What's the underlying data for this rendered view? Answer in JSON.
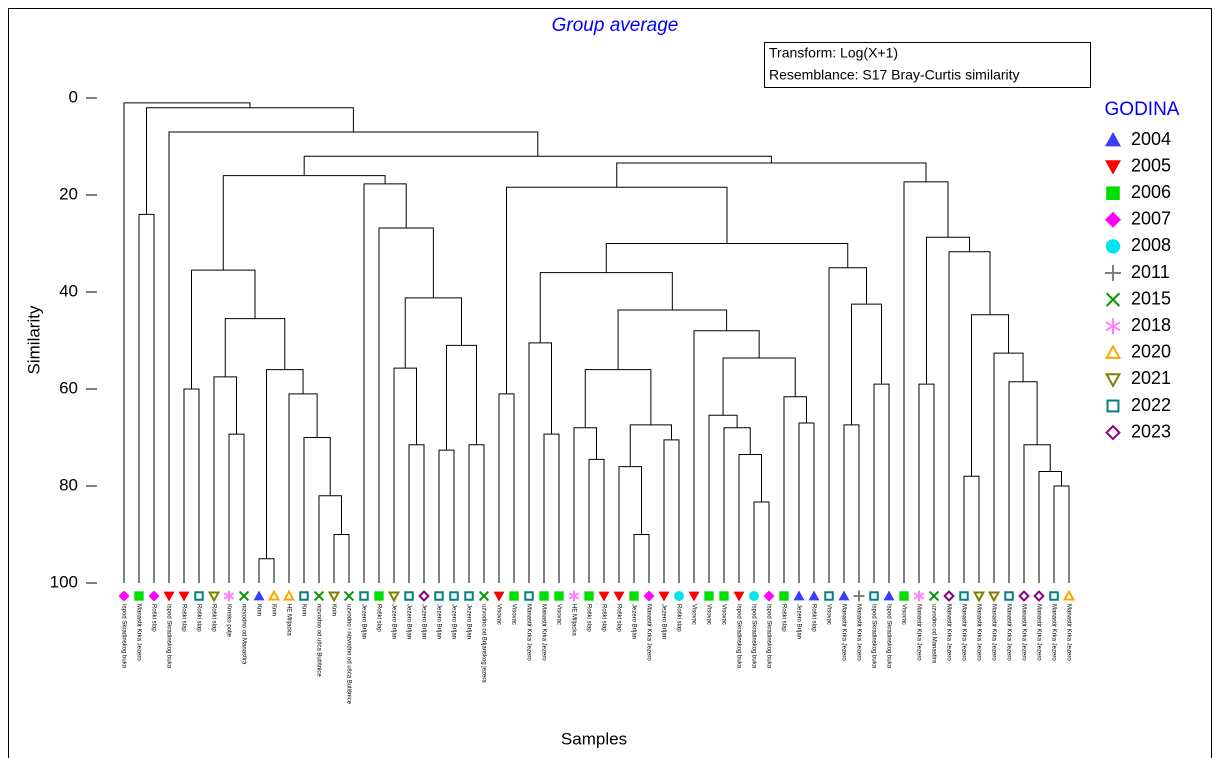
{
  "chart_data": {
    "type": "dendrogram",
    "title": "Group average",
    "notes": [
      "Transform: Log(X+1)",
      "Resemblance: S17 Bray-Curtis similarity"
    ],
    "y_label": "Similarity",
    "x_label": "Samples",
    "ylim": [
      0,
      100
    ],
    "yticks": [
      0,
      20,
      40,
      60,
      80,
      100
    ],
    "legend_title": "GODINA",
    "groups": [
      {
        "name": "2004",
        "color": "#3b3bff",
        "shape": "triangle-up"
      },
      {
        "name": "2005",
        "color": "#ff0000",
        "shape": "triangle-down"
      },
      {
        "name": "2006",
        "color": "#00e000",
        "shape": "square"
      },
      {
        "name": "2007",
        "color": "#ff00ff",
        "shape": "diamond"
      },
      {
        "name": "2008",
        "color": "#00e5ee",
        "shape": "circle"
      },
      {
        "name": "2011",
        "color": "#808080",
        "shape": "plus"
      },
      {
        "name": "2015",
        "color": "#009a00",
        "shape": "cross"
      },
      {
        "name": "2018",
        "color": "#ff80ff",
        "shape": "asterisk"
      },
      {
        "name": "2020",
        "color": "#ffa500",
        "shape": "triangle-up-open"
      },
      {
        "name": "2021",
        "color": "#7f7f00",
        "shape": "triangle-down-open"
      },
      {
        "name": "2022",
        "color": "#008080",
        "shape": "square-open"
      },
      {
        "name": "2023",
        "color": "#8b008b",
        "shape": "diamond-open"
      }
    ],
    "leaves": [
      {
        "label": "Ispod Skradinskog buka",
        "group": "2007"
      },
      {
        "label": "Manastir Krka Jezero",
        "group": "2006"
      },
      {
        "label": "Roški slap",
        "group": "2007"
      },
      {
        "label": "Ispod Skradinskog buka",
        "group": "2005"
      },
      {
        "label": "Roški slap",
        "group": "2005"
      },
      {
        "label": "Roški slap",
        "group": "2022"
      },
      {
        "label": "Roški slap",
        "group": "2021"
      },
      {
        "label": "Krnsko polje",
        "group": "2018"
      },
      {
        "label": "nizvodno od Manastira",
        "group": "2015"
      },
      {
        "label": "Knin",
        "group": "2004"
      },
      {
        "label": "Knin",
        "group": "2020"
      },
      {
        "label": "HE Miljacka",
        "group": "2020"
      },
      {
        "label": "Knin",
        "group": "2022"
      },
      {
        "label": "nizvodno od ušća Butišnice",
        "group": "2015"
      },
      {
        "label": "Knin",
        "group": "2021"
      },
      {
        "label": "uzvodno i nizvodno od ušća Butišnice",
        "group": "2015"
      },
      {
        "label": "Jezero Brljan",
        "group": "2022"
      },
      {
        "label": "Roški slap",
        "group": "2006"
      },
      {
        "label": "Jezero Brljan",
        "group": "2021"
      },
      {
        "label": "Jezero Brljan",
        "group": "2022"
      },
      {
        "label": "Jezero Brljan",
        "group": "2023"
      },
      {
        "label": "Jezero Brljan",
        "group": "2022"
      },
      {
        "label": "Jezero Brljan",
        "group": "2022"
      },
      {
        "label": "Jezero Brljan",
        "group": "2022"
      },
      {
        "label": "uzvodno od Brljanskog jezera",
        "group": "2015"
      },
      {
        "label": "Visovac",
        "group": "2005"
      },
      {
        "label": "Visovac",
        "group": "2006"
      },
      {
        "label": "Manastir Krka Jezero",
        "group": "2022"
      },
      {
        "label": "Manastir Krka Jezero",
        "group": "2006"
      },
      {
        "label": "Visovac",
        "group": "2006"
      },
      {
        "label": "HE Miljacka",
        "group": "2018"
      },
      {
        "label": "Roški slap",
        "group": "2006"
      },
      {
        "label": "Roški slap",
        "group": "2005"
      },
      {
        "label": "Roški slap",
        "group": "2005"
      },
      {
        "label": "Jezero Brljan",
        "group": "2006"
      },
      {
        "label": "Manastir Krka Jezero",
        "group": "2007"
      },
      {
        "label": "Jezero Brljan",
        "group": "2005"
      },
      {
        "label": "Roški slap",
        "group": "2008"
      },
      {
        "label": "Visovac",
        "group": "2005"
      },
      {
        "label": "Visovac",
        "group": "2006"
      },
      {
        "label": "Visovac",
        "group": "2006"
      },
      {
        "label": "Ispod Skradinskog buka",
        "group": "2005"
      },
      {
        "label": "Ispod Skradinskog buka",
        "group": "2008"
      },
      {
        "label": "Ispod Skradinskog buka",
        "group": "2007"
      },
      {
        "label": "Roški slap",
        "group": "2006"
      },
      {
        "label": "Jezero Brljan",
        "group": "2004"
      },
      {
        "label": "Roški slap",
        "group": "2004"
      },
      {
        "label": "Visovac",
        "group": "2022"
      },
      {
        "label": "Manastir Krka Jezero",
        "group": "2004"
      },
      {
        "label": "Manastir Krka Jezero",
        "group": "2011"
      },
      {
        "label": "Ispod Skradinskog buka",
        "group": "2022"
      },
      {
        "label": "Ispod Skradinskog buka",
        "group": "2004"
      },
      {
        "label": "Visovac",
        "group": "2006"
      },
      {
        "label": "Manastir Krka Jezero",
        "group": "2018"
      },
      {
        "label": "uzvodno od Manastira",
        "group": "2015"
      },
      {
        "label": "Manastir Krka Jezero",
        "group": "2023"
      },
      {
        "label": "Manastir Krka Jezero",
        "group": "2022"
      },
      {
        "label": "Manastir Krka Jezero",
        "group": "2021"
      },
      {
        "label": "Manastir Krka Jezero",
        "group": "2021"
      },
      {
        "label": "Manastir Krka Jezero",
        "group": "2022"
      },
      {
        "label": "Manastir Krka Jezero",
        "group": "2023"
      },
      {
        "label": "Manastir Krka Jezero",
        "group": "2023"
      },
      {
        "label": "Manastir Krka Jezero",
        "group": "2022"
      },
      {
        "label": "Manastir Krka Jezero",
        "group": "2020"
      }
    ],
    "merges": [
      {
        "join": [
          1,
          2
        ],
        "height": 24
      },
      {
        "join": [
          4,
          5
        ],
        "height": 60
      },
      {
        "join": [
          7,
          8
        ],
        "height": 69.3
      },
      {
        "join": [
          6,
          66
        ],
        "height": 57.5
      },
      {
        "join": [
          9,
          10
        ],
        "height": 95
      },
      {
        "join": [
          14,
          15
        ],
        "height": 90
      },
      {
        "join": [
          13,
          69
        ],
        "height": 82
      },
      {
        "join": [
          12,
          70
        ],
        "height": 70
      },
      {
        "join": [
          11,
          71
        ],
        "height": 61
      },
      {
        "join": [
          68,
          72
        ],
        "height": 56
      },
      {
        "join": [
          67,
          73
        ],
        "height": 45.5
      },
      {
        "join": [
          65,
          74
        ],
        "height": 35.5
      },
      {
        "join": [
          19,
          20
        ],
        "height": 71.5
      },
      {
        "join": [
          18,
          76
        ],
        "height": 55.7
      },
      {
        "join": [
          21,
          22
        ],
        "height": 72.6
      },
      {
        "join": [
          23,
          24
        ],
        "height": 71.5
      },
      {
        "join": [
          78,
          79
        ],
        "height": 51
      },
      {
        "join": [
          77,
          80
        ],
        "height": 41.2
      },
      {
        "join": [
          17,
          81
        ],
        "height": 26.8
      },
      {
        "join": [
          16,
          82
        ],
        "height": 17.7
      },
      {
        "join": [
          75,
          83
        ],
        "height": 16
      },
      {
        "join": [
          25,
          26
        ],
        "height": 61
      },
      {
        "join": [
          28,
          29
        ],
        "height": 69.3
      },
      {
        "join": [
          27,
          86
        ],
        "height": 50.5
      },
      {
        "join": [
          31,
          32
        ],
        "height": 74.5
      },
      {
        "join": [
          30,
          88
        ],
        "height": 68
      },
      {
        "join": [
          34,
          35
        ],
        "height": 90
      },
      {
        "join": [
          33,
          90
        ],
        "height": 76
      },
      {
        "join": [
          36,
          37
        ],
        "height": 70.5
      },
      {
        "join": [
          91,
          92
        ],
        "height": 67.4
      },
      {
        "join": [
          89,
          93
        ],
        "height": 56
      },
      {
        "join": [
          42,
          43
        ],
        "height": 83.3
      },
      {
        "join": [
          41,
          95
        ],
        "height": 73.5
      },
      {
        "join": [
          40,
          96
        ],
        "height": 68
      },
      {
        "join": [
          39,
          97
        ],
        "height": 65.4
      },
      {
        "join": [
          45,
          46
        ],
        "height": 67
      },
      {
        "join": [
          44,
          99
        ],
        "height": 61.6
      },
      {
        "join": [
          98,
          100
        ],
        "height": 53.6
      },
      {
        "join": [
          38,
          101
        ],
        "height": 48
      },
      {
        "join": [
          94,
          102
        ],
        "height": 43.7
      },
      {
        "join": [
          87,
          103
        ],
        "height": 36
      },
      {
        "join": [
          48,
          49
        ],
        "height": 67.4
      },
      {
        "join": [
          50,
          51
        ],
        "height": 59
      },
      {
        "join": [
          105,
          106
        ],
        "height": 42.5
      },
      {
        "join": [
          47,
          107
        ],
        "height": 35
      },
      {
        "join": [
          104,
          108
        ],
        "height": 30
      },
      {
        "join": [
          85,
          109
        ],
        "height": 18.4
      },
      {
        "join": [
          53,
          54
        ],
        "height": 59
      },
      {
        "join": [
          62,
          63
        ],
        "height": 80
      },
      {
        "join": [
          61,
          112
        ],
        "height": 77
      },
      {
        "join": [
          60,
          113
        ],
        "height": 71.5
      },
      {
        "join": [
          59,
          114
        ],
        "height": 58.5
      },
      {
        "join": [
          58,
          115
        ],
        "height": 52.6
      },
      {
        "join": [
          56,
          57
        ],
        "height": 78
      },
      {
        "join": [
          117,
          116
        ],
        "height": 44.7
      },
      {
        "join": [
          55,
          118
        ],
        "height": 31.7
      },
      {
        "join": [
          111,
          119
        ],
        "height": 28.7
      },
      {
        "join": [
          52,
          120
        ],
        "height": 17.3
      },
      {
        "join": [
          110,
          121
        ],
        "height": 13.4
      },
      {
        "join": [
          84,
          122
        ],
        "height": 12
      },
      {
        "join": [
          3,
          123
        ],
        "height": 7
      },
      {
        "join": [
          64,
          124
        ],
        "height": 2
      },
      {
        "join": [
          0,
          125
        ],
        "height": 1
      }
    ]
  }
}
